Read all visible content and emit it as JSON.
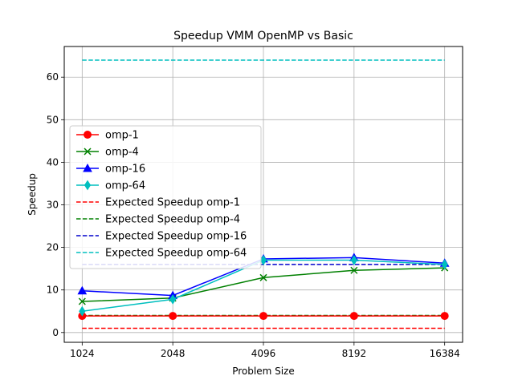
{
  "chart_data": {
    "type": "line",
    "title": "Speedup VMM OpenMP vs Basic",
    "xlabel": "Problem Size",
    "ylabel": "Speedup",
    "categories": [
      "1024",
      "2048",
      "4096",
      "8192",
      "16384"
    ],
    "ylim": [
      -2.3,
      67.2
    ],
    "yticks": [
      0,
      10,
      20,
      30,
      40,
      50,
      60
    ],
    "grid": true,
    "legend_position": "center-left",
    "series": [
      {
        "name": "omp-1",
        "values": [
          3.9,
          3.9,
          3.9,
          3.9,
          3.9
        ],
        "color": "#ff0000",
        "style": "solid",
        "marker": "circle"
      },
      {
        "name": "omp-4",
        "values": [
          7.3,
          8.1,
          12.9,
          14.6,
          15.2
        ],
        "color": "#008000",
        "style": "solid",
        "marker": "x"
      },
      {
        "name": "omp-16",
        "values": [
          9.8,
          8.7,
          17.3,
          17.6,
          16.3
        ],
        "color": "#0000ff",
        "style": "solid",
        "marker": "triangle"
      },
      {
        "name": "omp-64",
        "values": [
          5.0,
          7.8,
          17.0,
          17.0,
          16.0
        ],
        "color": "#00bfbf",
        "style": "solid",
        "marker": "diamond"
      },
      {
        "name": "Expected Speedup omp-1",
        "values": [
          1,
          1,
          1,
          1,
          1
        ],
        "color": "#ff0000",
        "style": "dashed",
        "marker": "none"
      },
      {
        "name": "Expected Speedup omp-4",
        "values": [
          4,
          4,
          4,
          4,
          4
        ],
        "color": "#008000",
        "style": "dashed",
        "marker": "none"
      },
      {
        "name": "Expected Speedup omp-16",
        "values": [
          16,
          16,
          16,
          16,
          16
        ],
        "color": "#0000cc",
        "style": "dashed",
        "marker": "none"
      },
      {
        "name": "Expected Speedup omp-64",
        "values": [
          64,
          64,
          64,
          64,
          64
        ],
        "color": "#00bfbf",
        "style": "dashed",
        "marker": "none"
      }
    ]
  }
}
